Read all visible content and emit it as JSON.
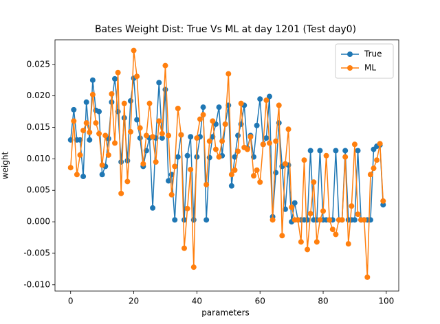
{
  "chart_data": {
    "type": "line",
    "title": "Bates Weight Dist: True Vs ML at day 1201 (Test day0)",
    "xlabel": "parameters",
    "ylabel": "weight",
    "x": [
      0,
      1,
      2,
      3,
      4,
      5,
      6,
      7,
      8,
      9,
      10,
      11,
      12,
      13,
      14,
      15,
      16,
      17,
      18,
      19,
      20,
      21,
      22,
      23,
      24,
      25,
      26,
      27,
      28,
      29,
      30,
      31,
      32,
      33,
      34,
      35,
      36,
      37,
      38,
      39,
      40,
      41,
      42,
      43,
      44,
      45,
      46,
      47,
      48,
      49,
      50,
      51,
      52,
      53,
      54,
      55,
      56,
      57,
      58,
      59,
      60,
      61,
      62,
      63,
      64,
      65,
      66,
      67,
      68,
      69,
      70,
      71,
      72,
      73,
      74,
      75,
      76,
      77,
      78,
      79,
      80,
      81,
      82,
      83,
      84,
      85,
      86,
      87,
      88,
      89,
      90,
      91,
      92,
      93,
      94,
      95,
      96,
      97,
      98,
      99
    ],
    "series": [
      {
        "name": "True",
        "color": "#1f77b4",
        "values": [
          0.013,
          0.0178,
          0.013,
          0.013,
          0.0072,
          0.019,
          0.013,
          0.0225,
          0.0177,
          0.0175,
          0.0075,
          0.0088,
          0.0132,
          0.019,
          0.0227,
          0.0175,
          0.0095,
          0.0165,
          0.0097,
          0.0192,
          0.0228,
          0.0162,
          0.0133,
          0.0088,
          0.0113,
          0.0133,
          0.0022,
          0.0133,
          0.0221,
          0.0133,
          0.021,
          0.0065,
          0.0075,
          0.0003,
          0.0103,
          0.0138,
          0.0003,
          0.0105,
          0.0135,
          0.0003,
          0.0103,
          0.0135,
          0.0182,
          0.0003,
          0.0102,
          0.0135,
          0.0155,
          0.0182,
          0.0105,
          0.0155,
          0.0185,
          0.0057,
          0.0103,
          0.0137,
          0.0155,
          0.0185,
          0.0117,
          0.0137,
          0.0103,
          0.0153,
          0.0195,
          0.0123,
          0.0133,
          0.0199,
          0.0008,
          0.0078,
          0.0157,
          0.0088,
          0.002,
          0.009,
          0.0,
          0.003,
          0.0003,
          0.0003,
          0.0003,
          0.0003,
          0.0113,
          0.0003,
          0.0003,
          0.0113,
          0.0003,
          0.0003,
          0.0003,
          0.0003,
          0.0113,
          0.0003,
          0.0003,
          0.0113,
          0.0003,
          0.0003,
          0.0003,
          0.0113,
          0.0003,
          0.0003,
          0.0003,
          0.0003,
          0.0115,
          0.012,
          0.0122,
          0.0027
        ]
      },
      {
        "name": "ML",
        "color": "#ff7f0e",
        "values": [
          0.0086,
          0.016,
          0.0075,
          0.0106,
          0.0145,
          0.0157,
          0.0142,
          0.0202,
          0.0157,
          0.014,
          0.009,
          0.0137,
          0.0106,
          0.0203,
          0.0125,
          0.0237,
          0.0045,
          0.0188,
          0.0064,
          0.0143,
          0.0272,
          0.0231,
          0.0149,
          0.0092,
          0.0137,
          0.0188,
          0.0135,
          0.0095,
          0.016,
          0.014,
          0.0248,
          0.0137,
          0.0043,
          0.0088,
          0.018,
          0.0138,
          -0.0042,
          0.0021,
          0.0083,
          -0.0072,
          0.0133,
          0.0163,
          0.017,
          0.0059,
          0.0128,
          0.016,
          0.0115,
          0.0103,
          0.0128,
          0.0155,
          0.0235,
          0.0075,
          0.0082,
          0.0112,
          0.0188,
          0.0118,
          0.0115,
          0.0135,
          0.0073,
          0.0082,
          0.0063,
          0.0123,
          0.0193,
          0.0125,
          0.0003,
          0.0128,
          0.0185,
          -0.0022,
          0.0092,
          0.0147,
          0.0023,
          0.0003,
          0.0003,
          -0.0032,
          0.0098,
          -0.0044,
          0.0013,
          0.0063,
          -0.0032,
          0.0003,
          0.0017,
          0.0105,
          0.0003,
          -0.0012,
          -0.002,
          0.0003,
          0.0003,
          0.0103,
          -0.0035,
          0.0025,
          0.0123,
          0.0012,
          0.0003,
          0.0003,
          -0.0088,
          0.0075,
          0.0085,
          0.0098,
          0.0124,
          0.0033
        ]
      }
    ],
    "xlim": [
      -4.95,
      103.95
    ],
    "ylim": [
      -0.011,
      0.0289
    ],
    "xticks": [
      0,
      20,
      40,
      60,
      80,
      100
    ],
    "yticks": [
      {
        "value": -0.01,
        "label": "-0.010"
      },
      -0.005,
      {
        "value": 0,
        "label": "0.000"
      },
      0.005,
      {
        "value": 0.01,
        "label": "0.010"
      },
      0.015,
      {
        "value": 0.02,
        "label": "0.020"
      },
      0.025
    ],
    "legend": "upper right"
  }
}
